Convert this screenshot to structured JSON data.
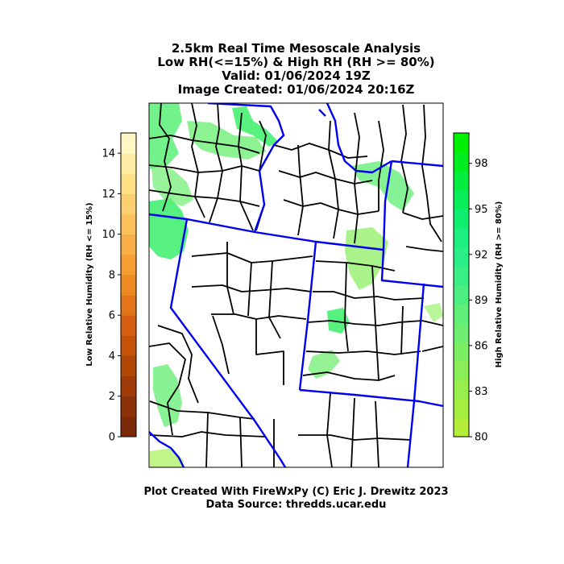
{
  "chart_data": {
    "type": "heatmap",
    "title_lines": [
      "2.5km Real Time Mesoscale Analysis",
      "Low RH(<=15%) & High RH (RH >= 80%)",
      "Valid: 01/06/2024 19Z",
      "Image Created: 01/06/2024 20:16Z"
    ],
    "left_colorbar": {
      "label": "Low Relative Humidity (RH <= 15%)",
      "range": [
        0,
        15
      ],
      "ticks": [
        "0",
        "2",
        "4",
        "6",
        "8",
        "10",
        "12",
        "14"
      ],
      "tick_values": [
        0,
        2,
        4,
        6,
        8,
        10,
        12,
        14
      ],
      "colors": [
        "#7a2a08",
        "#8c3208",
        "#9e3a08",
        "#b04608",
        "#c45208",
        "#d66010",
        "#e47418",
        "#ee8a24",
        "#f59e34",
        "#f8b046",
        "#fbc05a",
        "#fcd070",
        "#fde088",
        "#feeca4",
        "#fff6c4"
      ]
    },
    "right_colorbar": {
      "label": "High Relative Humidity (RH >= 80%)",
      "range": [
        80,
        100
      ],
      "ticks": [
        "80",
        "83",
        "86",
        "89",
        "92",
        "95",
        "98"
      ],
      "tick_values": [
        80,
        83,
        86,
        89,
        92,
        95,
        98
      ],
      "colors": [
        "#b4ee3a",
        "#a6ee42",
        "#98ee4c",
        "#8aee58",
        "#7cee64",
        "#6eee70",
        "#5eee7a",
        "#4cee82",
        "#3aee86",
        "#2aee88",
        "#1cee80",
        "#10ee70",
        "#08ee58",
        "#04ee40",
        "#00ee20",
        "#00ee00"
      ]
    },
    "boundary_colors": {
      "counties": "#000000",
      "states": "#0000ee"
    }
  },
  "footer": {
    "credit": "Plot Created With FireWxPy (C) Eric J. Drewitz 2023",
    "source": "Data Source: thredds.ucar.edu"
  }
}
